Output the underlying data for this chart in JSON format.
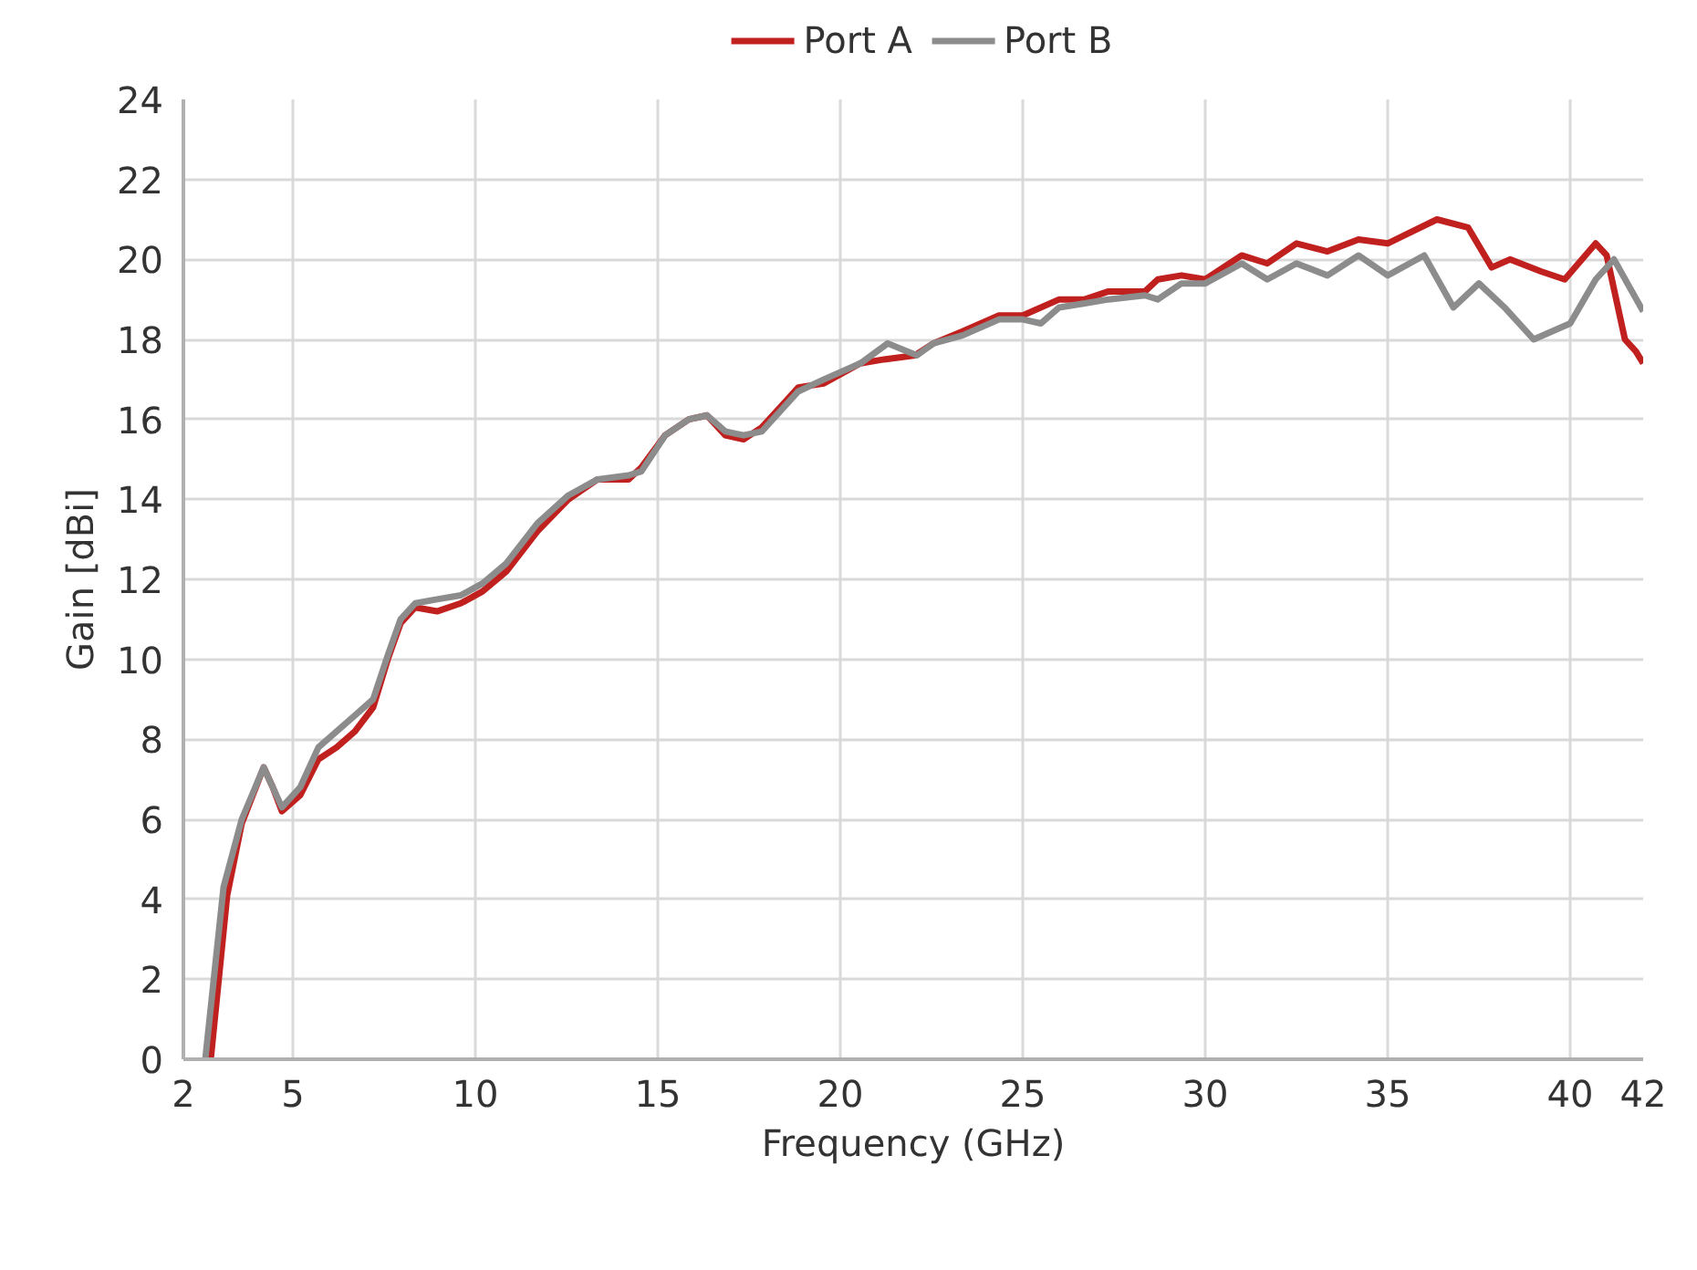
{
  "chart_data": {
    "type": "line",
    "xlabel": "Frequency (GHz)",
    "ylabel": "Gain [dBi]",
    "xlim": [
      2,
      42
    ],
    "xticks": [
      2,
      5,
      10,
      15,
      20,
      25,
      30,
      35,
      40,
      42
    ],
    "ylim": [
      0,
      24
    ],
    "yticks": [
      0,
      2,
      4,
      6,
      8,
      10,
      12,
      14,
      16,
      18,
      20,
      22,
      24
    ],
    "grid": true,
    "legend": "top",
    "line_style": "solid",
    "marker": "none",
    "series": [
      {
        "name": "Port A",
        "color": "#c0201e",
        "x": [
          2.75,
          3.2,
          3.6,
          4.2,
          4.45,
          4.7,
          5.2,
          5.7,
          6.2,
          6.7,
          7.2,
          7.6,
          7.95,
          8.35,
          8.95,
          9.6,
          10.2,
          10.85,
          11.7,
          12.55,
          13.35,
          14.2,
          14.55,
          15.2,
          15.85,
          16.35,
          16.85,
          17.35,
          17.85,
          18.35,
          18.85,
          19.55,
          20.55,
          21.2,
          22.05,
          22.55,
          23.35,
          24.35,
          25.0,
          26.0,
          26.7,
          27.35,
          28.35,
          28.7,
          29.35,
          30.0,
          31.0,
          31.7,
          32.5,
          33.35,
          34.2,
          35.0,
          36.35,
          37.2,
          37.85,
          38.35,
          39.2,
          39.85,
          40.7,
          41.0,
          41.5,
          41.8,
          42.0
        ],
        "values": [
          0,
          4.1,
          5.9,
          7.3,
          6.8,
          6.2,
          6.6,
          7.5,
          7.8,
          8.2,
          8.8,
          10.0,
          10.9,
          11.3,
          11.2,
          11.4,
          11.7,
          12.2,
          13.2,
          14.0,
          14.5,
          14.5,
          14.8,
          15.6,
          16.0,
          16.1,
          15.6,
          15.5,
          15.8,
          16.3,
          16.8,
          16.9,
          17.4,
          17.5,
          17.6,
          17.9,
          18.2,
          18.6,
          18.6,
          19.0,
          19.0,
          19.2,
          19.2,
          19.5,
          19.6,
          19.5,
          20.1,
          19.9,
          20.4,
          20.2,
          20.5,
          20.4,
          21.0,
          20.8,
          19.8,
          20.0,
          19.7,
          19.5,
          20.4,
          20.1,
          18.0,
          17.7,
          17.4
        ]
      },
      {
        "name": "Port B",
        "color": "#8c8c8c",
        "x": [
          2.6,
          3.1,
          3.6,
          4.2,
          4.45,
          4.7,
          5.2,
          5.7,
          6.2,
          6.7,
          7.2,
          7.6,
          7.95,
          8.35,
          8.95,
          9.6,
          10.2,
          10.85,
          11.7,
          12.55,
          13.35,
          14.2,
          14.55,
          15.2,
          15.85,
          16.35,
          16.85,
          17.35,
          17.85,
          18.35,
          18.85,
          19.55,
          20.55,
          21.3,
          22.1,
          22.55,
          23.35,
          24.35,
          25.0,
          25.5,
          26.0,
          26.7,
          27.35,
          28.35,
          28.7,
          29.35,
          30.0,
          31.0,
          31.7,
          32.5,
          33.35,
          34.2,
          35.0,
          36.0,
          36.8,
          37.5,
          38.2,
          39.0,
          39.5,
          40.0,
          40.7,
          41.2,
          42.0
        ],
        "values": [
          0,
          4.3,
          6.0,
          7.3,
          6.8,
          6.3,
          6.8,
          7.8,
          8.2,
          8.6,
          9.0,
          10.1,
          11.0,
          11.4,
          11.5,
          11.6,
          11.9,
          12.4,
          13.4,
          14.1,
          14.5,
          14.6,
          14.7,
          15.6,
          16.0,
          16.1,
          15.7,
          15.6,
          15.7,
          16.2,
          16.7,
          17.0,
          17.4,
          17.9,
          17.6,
          17.9,
          18.1,
          18.5,
          18.5,
          18.4,
          18.8,
          18.9,
          19.0,
          19.1,
          19.0,
          19.4,
          19.4,
          19.9,
          19.5,
          19.9,
          19.6,
          20.1,
          19.6,
          20.1,
          18.8,
          19.4,
          18.8,
          18.0,
          18.2,
          18.4,
          19.5,
          20.0,
          18.7
        ]
      }
    ]
  }
}
